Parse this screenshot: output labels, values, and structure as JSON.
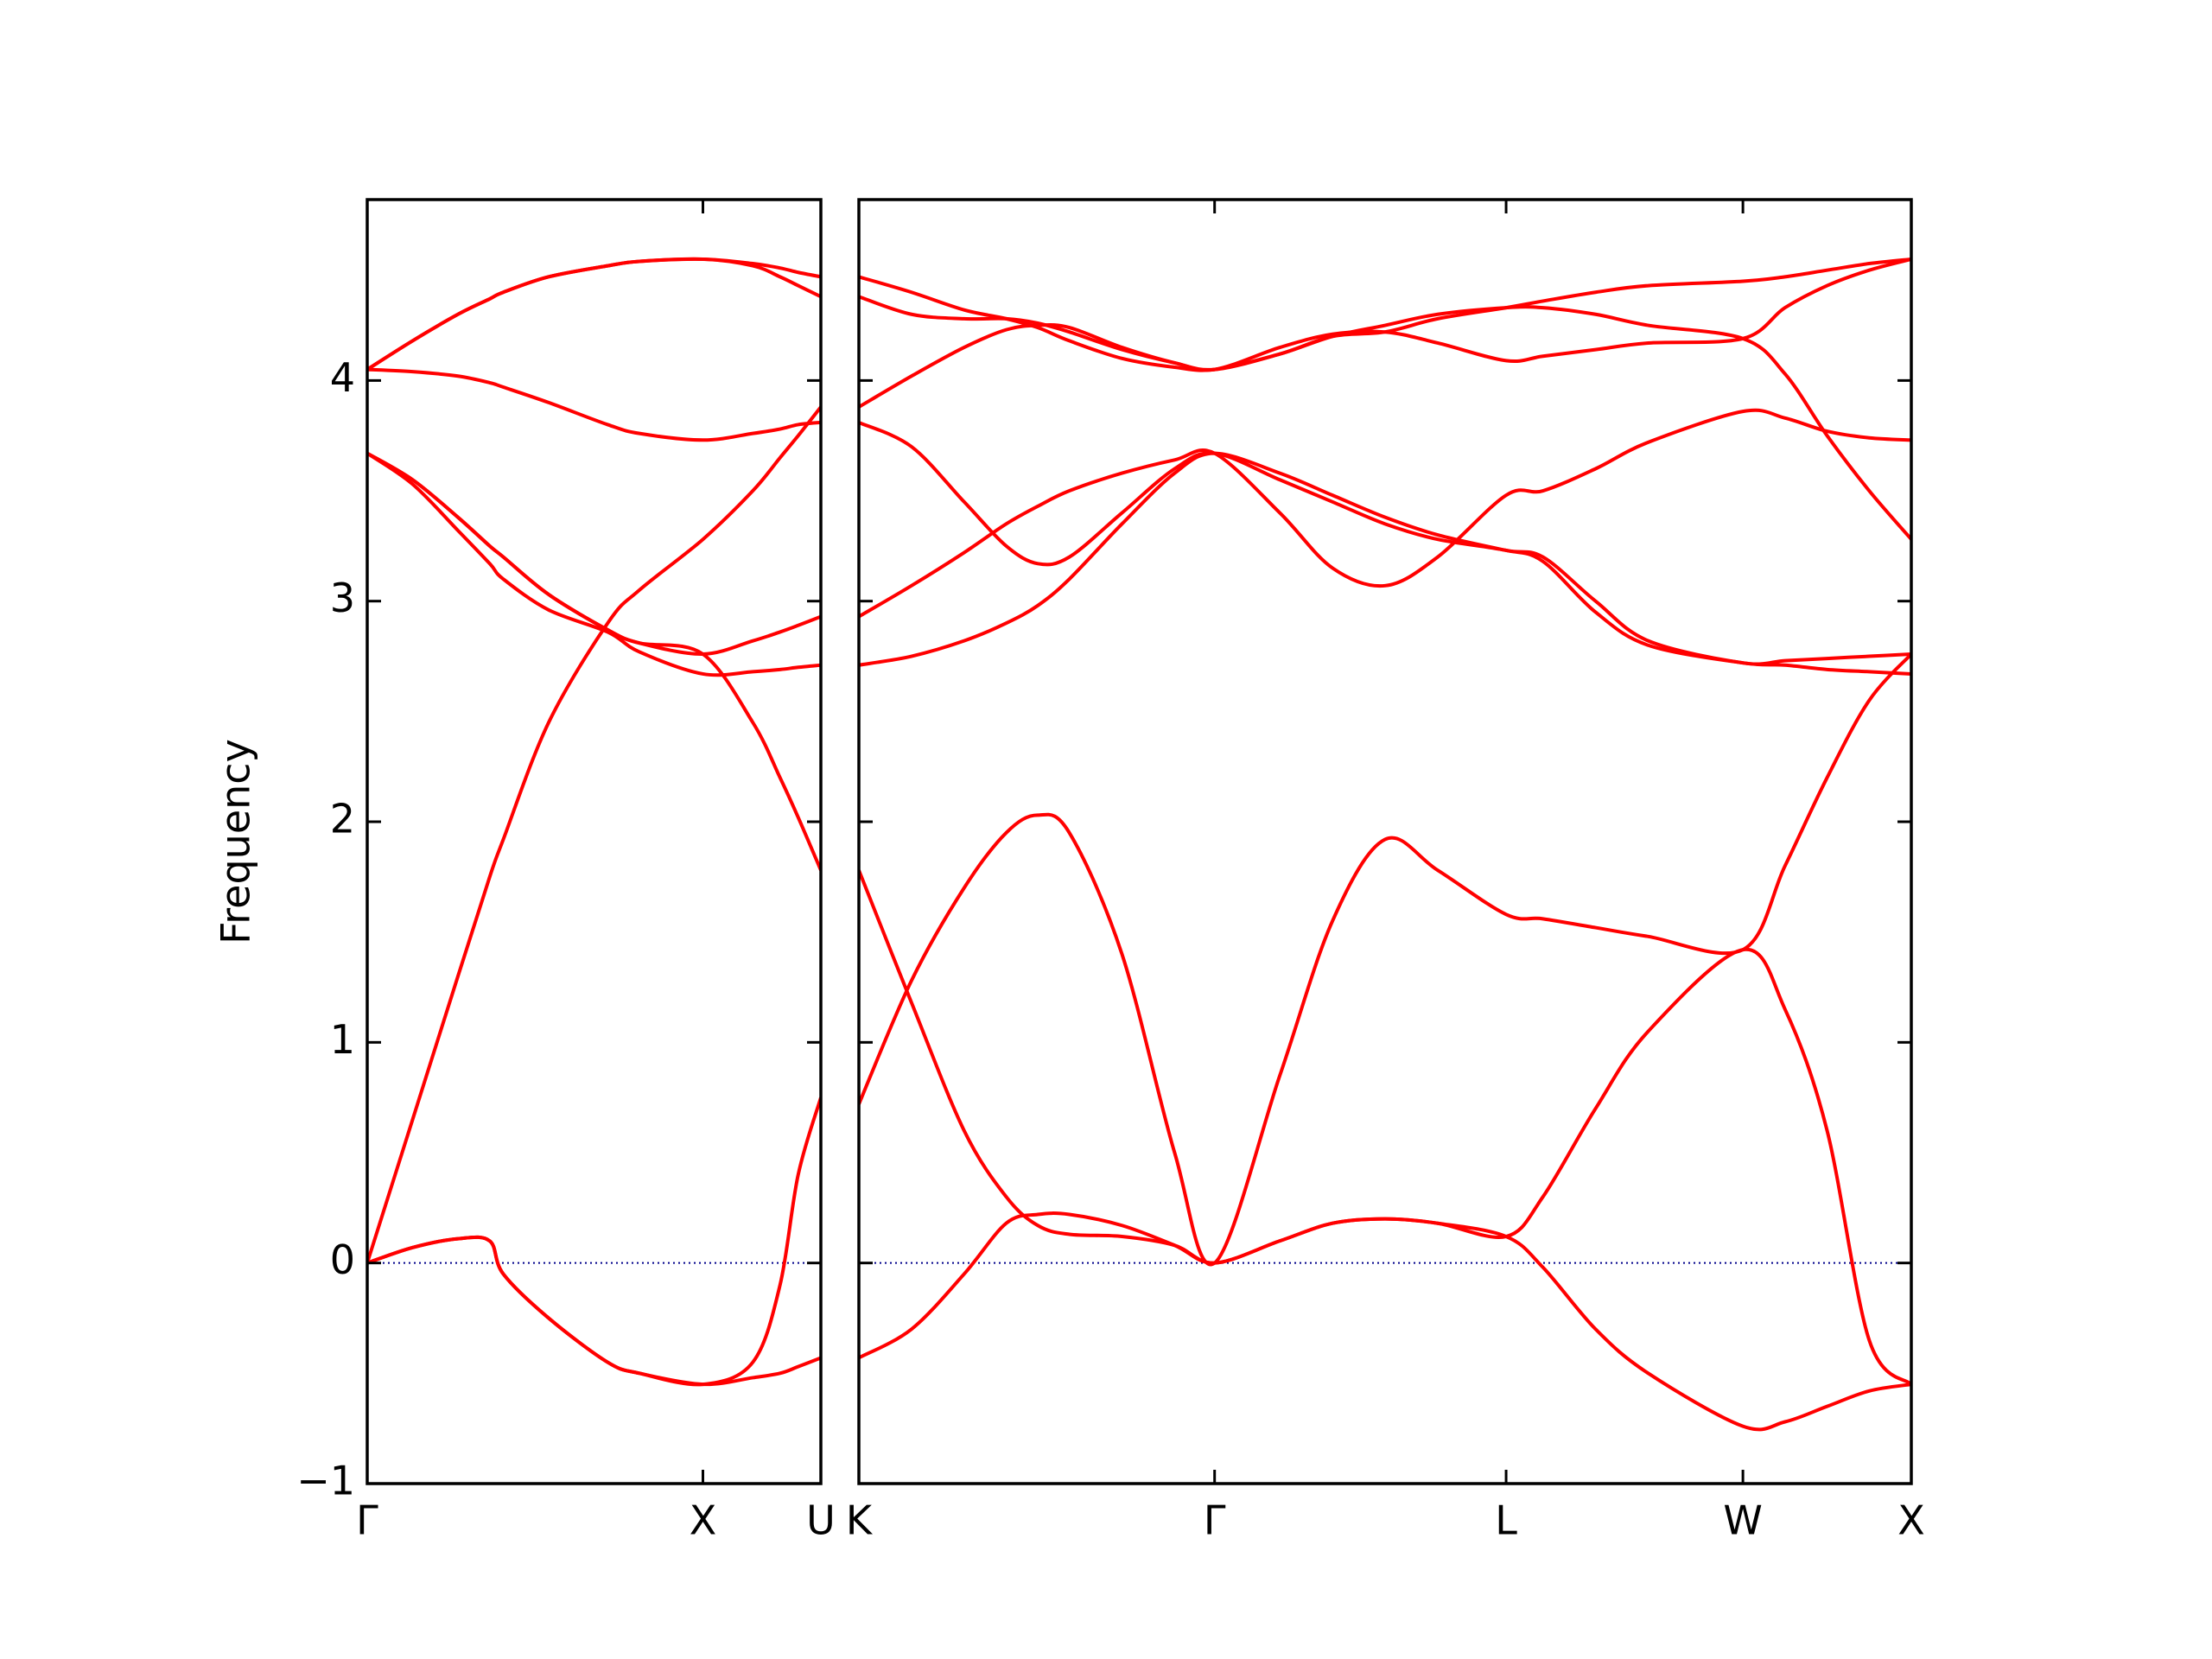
{
  "chart_data": [
    {
      "type": "line",
      "ylabel": "Frequency",
      "x": [
        0,
        0.1,
        0.2,
        0.27,
        0.3,
        0.4,
        0.53,
        0.6,
        0.74,
        0.85,
        0.91,
        0.95,
        1
      ],
      "xlim": [
        0,
        1
      ],
      "xticks": [
        {
          "value": 0,
          "label": "Γ"
        },
        {
          "value": 0.74,
          "label": "X"
        },
        {
          "value": 1,
          "label": "U"
        }
      ],
      "ylim": [
        -1,
        4.82
      ],
      "yticks": [
        {
          "value": -1,
          "label": "−1"
        },
        0,
        1,
        2,
        3,
        4
      ],
      "ytick_labels": true,
      "zero_line": true,
      "zero_line_color": "#00008b",
      "series": [
        {
          "color": "#ff0000",
          "values": [
            0,
            0.07,
            0.11,
            0.1,
            -0.05,
            -0.25,
            -0.45,
            -0.5,
            -0.55,
            -0.52,
            -0.5,
            -0.47,
            -0.43
          ]
        },
        {
          "color": "#ff0000",
          "values": [
            0,
            0.07,
            0.11,
            0.1,
            -0.05,
            -0.25,
            -0.45,
            -0.5,
            -0.55,
            -0.45,
            -0.1,
            0.4,
            0.75
          ]
        },
        {
          "color": "#ff0000",
          "values": [
            0,
            0.65,
            1.3,
            1.75,
            1.92,
            2.45,
            2.9,
            3.05,
            3.28,
            3.5,
            3.65,
            3.75,
            3.88
          ]
        },
        {
          "color": "#ff0000",
          "values": [
            3.67,
            3.55,
            3.38,
            3.25,
            3.2,
            3.03,
            2.87,
            2.81,
            2.76,
            2.82,
            2.86,
            2.89,
            2.93
          ]
        },
        {
          "color": "#ff0000",
          "values": [
            3.67,
            3.53,
            3.32,
            3.17,
            3.1,
            2.96,
            2.86,
            2.77,
            2.67,
            2.68,
            2.69,
            2.7,
            2.71
          ]
        },
        {
          "color": "#ff0000",
          "values": [
            3.67,
            3.55,
            3.38,
            3.25,
            3.2,
            3.03,
            2.87,
            2.81,
            2.76,
            2.45,
            2.2,
            2.02,
            1.78
          ]
        },
        {
          "color": "#ff0000",
          "values": [
            4.05,
            4.04,
            4.02,
            3.99,
            3.97,
            3.9,
            3.8,
            3.76,
            3.73,
            3.76,
            3.78,
            3.8,
            3.81
          ]
        },
        {
          "color": "#ff0000",
          "values": [
            4.05,
            4.18,
            4.3,
            4.37,
            4.4,
            4.47,
            4.52,
            4.54,
            4.55,
            4.53,
            4.51,
            4.49,
            4.47
          ]
        },
        {
          "color": "#ff0000",
          "values": [
            4.05,
            4.18,
            4.3,
            4.37,
            4.4,
            4.47,
            4.52,
            4.54,
            4.55,
            4.52,
            4.47,
            4.43,
            4.38
          ]
        }
      ]
    },
    {
      "type": "line",
      "x": [
        0,
        0.05,
        0.1,
        0.14,
        0.17,
        0.2,
        0.25,
        0.3,
        0.338,
        0.4,
        0.45,
        0.5,
        0.55,
        0.615,
        0.65,
        0.7,
        0.75,
        0.84,
        0.88,
        0.92,
        0.96,
        1
      ],
      "xlim": [
        0,
        1
      ],
      "xticks": [
        {
          "value": 0,
          "label": "K"
        },
        {
          "value": 0.338,
          "label": "Γ"
        },
        {
          "value": 0.615,
          "label": "L"
        },
        {
          "value": 0.84,
          "label": "W"
        },
        {
          "value": 1,
          "label": "X"
        }
      ],
      "ylim": [
        -1,
        4.82
      ],
      "yticks": [
        -1,
        0,
        1,
        2,
        3,
        4
      ],
      "ytick_labels": false,
      "zero_line": true,
      "zero_line_color": "#00008b",
      "series": [
        {
          "color": "#ff0000",
          "values": [
            -0.43,
            -0.3,
            -0.05,
            0.18,
            0.22,
            0.22,
            0.17,
            0.08,
            0,
            0.1,
            0.18,
            0.2,
            0.18,
            0.12,
            -0.02,
            -0.3,
            -0.5,
            -0.74,
            -0.72,
            -0.65,
            -0.58,
            -0.55
          ]
        },
        {
          "color": "#ff0000",
          "values": [
            1.78,
            1.18,
            0.6,
            0.3,
            0.17,
            0.13,
            0.12,
            0.08,
            0,
            0.1,
            0.18,
            0.2,
            0.18,
            0.12,
            0.3,
            0.7,
            1.05,
            1.42,
            1.15,
            0.6,
            -0.35,
            -0.55
          ]
        },
        {
          "color": "#ff0000",
          "values": [
            0.72,
            1.28,
            1.7,
            1.95,
            2.03,
            1.95,
            1.4,
            0.5,
            0,
            0.85,
            1.55,
            1.92,
            1.78,
            1.58,
            1.56,
            1.52,
            1.48,
            1.42,
            1.8,
            2.2,
            2.55,
            2.76
          ]
        },
        {
          "color": "#ff0000",
          "values": [
            2.71,
            2.75,
            2.82,
            2.9,
            2.98,
            3.1,
            3.35,
            3.58,
            3.67,
            3.58,
            3.48,
            3.38,
            3.3,
            3.23,
            3.2,
            3.0,
            2.82,
            2.72,
            2.73,
            2.74,
            2.75,
            2.76
          ]
        },
        {
          "color": "#ff0000",
          "values": [
            2.93,
            3.07,
            3.22,
            3.35,
            3.43,
            3.5,
            3.58,
            3.64,
            3.67,
            3.4,
            3.15,
            3.07,
            3.2,
            3.48,
            3.5,
            3.6,
            3.72,
            3.86,
            3.83,
            3.77,
            3.74,
            3.73
          ]
        },
        {
          "color": "#ff0000",
          "values": [
            3.81,
            3.7,
            3.45,
            3.25,
            3.17,
            3.2,
            3.4,
            3.6,
            3.67,
            3.55,
            3.45,
            3.35,
            3.28,
            3.23,
            3.18,
            2.95,
            2.8,
            2.72,
            2.71,
            2.69,
            2.68,
            2.67
          ]
        },
        {
          "color": "#ff0000",
          "values": [
            3.88,
            4.02,
            4.15,
            4.23,
            4.25,
            4.24,
            4.15,
            4.08,
            4.05,
            4.12,
            4.2,
            4.25,
            4.3,
            4.33,
            4.33,
            4.3,
            4.25,
            4.19,
            4.03,
            3.75,
            3.5,
            3.28
          ]
        },
        {
          "color": "#ff0000",
          "values": [
            4.38,
            4.3,
            4.28,
            4.28,
            4.26,
            4.22,
            4.14,
            4.08,
            4.05,
            4.15,
            4.21,
            4.22,
            4.17,
            4.09,
            4.11,
            4.14,
            4.17,
            4.19,
            4.33,
            4.43,
            4.5,
            4.55
          ]
        },
        {
          "color": "#ff0000",
          "values": [
            4.47,
            4.4,
            4.32,
            4.28,
            4.24,
            4.18,
            4.1,
            4.06,
            4.05,
            4.12,
            4.2,
            4.22,
            4.28,
            4.33,
            4.36,
            4.4,
            4.43,
            4.45,
            4.47,
            4.5,
            4.53,
            4.55
          ]
        }
      ]
    }
  ]
}
